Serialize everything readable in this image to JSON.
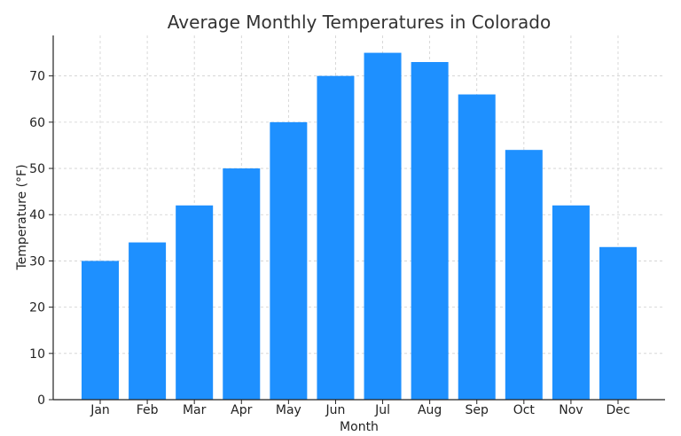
{
  "chart_data": {
    "type": "bar",
    "title": "Average Monthly Temperatures in Colorado",
    "xlabel": "Month",
    "ylabel": "Temperature (°F)",
    "categories": [
      "Jan",
      "Feb",
      "Mar",
      "Apr",
      "May",
      "Jun",
      "Jul",
      "Aug",
      "Sep",
      "Oct",
      "Nov",
      "Dec"
    ],
    "values": [
      30,
      34,
      42,
      50,
      60,
      70,
      75,
      73,
      66,
      54,
      42,
      33
    ],
    "ylim": [
      0,
      78.75
    ],
    "yticks": [
      0,
      10,
      20,
      30,
      40,
      50,
      60,
      70
    ],
    "grid": true,
    "bar_color": "#1e90ff"
  }
}
